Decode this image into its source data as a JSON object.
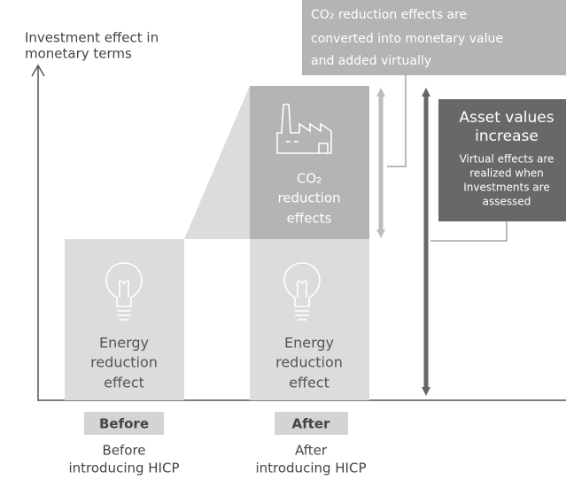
{
  "y_axis_label": [
    "Investment effect in",
    "monetary terms"
  ],
  "callout_top": [
    "CO₂ reduction effects are",
    "converted into monetary value",
    "and added virtually"
  ],
  "callout_right": {
    "title": [
      "Asset values",
      "increase"
    ],
    "body": [
      "Virtual effects are",
      "realized when",
      "Investments are",
      "assessed"
    ]
  },
  "before": {
    "box": [
      "Energy",
      "reduction",
      "effect"
    ],
    "tag": "Before",
    "caption": [
      "Before",
      "introducing HICP"
    ]
  },
  "after": {
    "upper_box": [
      "CO₂",
      "reduction",
      "effects"
    ],
    "box": [
      "Energy",
      "reduction",
      "effect"
    ],
    "tag": "After",
    "caption": [
      "After",
      "introducing HICP"
    ]
  }
}
